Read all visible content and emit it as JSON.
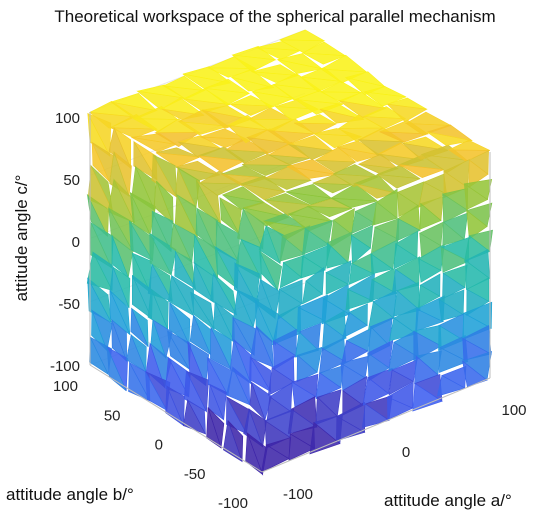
{
  "chart_data": {
    "type": "3d-surface",
    "title": "Theoretical workspace of the spherical parallel mechanism",
    "xlabel": "attitude angle a/°",
    "ylabel": "attitude angle b/°",
    "zlabel": "attitude angle c/°",
    "xticks": [
      "-100",
      "0",
      "100"
    ],
    "yticks": [
      "100",
      "50",
      "0",
      "-50",
      "-100"
    ],
    "zticks": [
      "100",
      "50",
      "0",
      "-50",
      "-100"
    ],
    "xlim": [
      -100,
      100
    ],
    "ylim": [
      -100,
      100
    ],
    "zlim": [
      -100,
      100
    ],
    "grid": true,
    "colormap": "parula",
    "colormap_stops": [
      "#3e26a8",
      "#3d5ef0",
      "#1fa1d8",
      "#25bba7",
      "#8cc53a",
      "#f4c02c",
      "#f9f119"
    ],
    "description_values": {
      "workspace_shape": "approximately cubic region spanning -100 to 100 on each attitude angle axis",
      "color_variable": "attitude angle c"
    }
  }
}
